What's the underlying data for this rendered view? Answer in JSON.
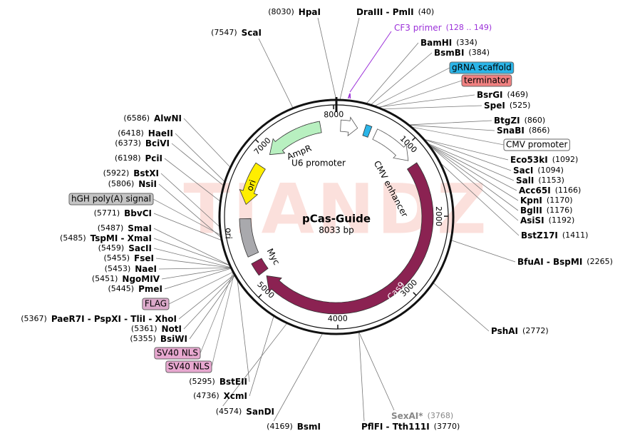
{
  "title": "pCas-Guide",
  "size_label": "8033 bp",
  "length": 8033,
  "watermark": "TIANDZ",
  "ring_ticks": [
    1000,
    2000,
    3000,
    4000,
    5000,
    7000,
    8000
  ],
  "features": [
    {
      "label": "U6 promoter",
      "start": 60,
      "end": 300,
      "color": "#ffffff",
      "arrow": true
    },
    {
      "label": null,
      "start": 400,
      "end": 480,
      "color": "#2bb5e8",
      "arrow": false
    },
    {
      "label": "CMV enhancer",
      "start": 560,
      "end": 1160,
      "color": "#ffffff",
      "arrow": true
    },
    {
      "label": "Cas9",
      "start": 1250,
      "end": 5130,
      "color": "#8b2252",
      "arrow": true
    },
    {
      "label": "Myc",
      "start": 5200,
      "end": 5380,
      "color": "#8b2252",
      "arrow": false
    },
    {
      "label": "ori",
      "start": 5480,
      "end": 6000,
      "color": "#a9a9ad",
      "arrow": false
    },
    {
      "label": "ori",
      "start": 6780,
      "end": 6200,
      "color": "#ffee00",
      "arrow": true
    },
    {
      "label": "AmpR",
      "start": 7810,
      "end": 6985,
      "color": "#b8f0c0",
      "arrow": true
    }
  ],
  "callouts": [
    {
      "text": "gRNA scaffold",
      "position": 430,
      "color": "#2bb5e8"
    },
    {
      "text": "terminator",
      "position": 480,
      "color": "#f08080"
    },
    {
      "text": "CMV promoter",
      "position": 900,
      "color": "#ffffff"
    },
    {
      "text": "hGH poly(A) signal",
      "position": 5830,
      "color": "#c4c4c4"
    },
    {
      "text": "FLAG",
      "position": 5400,
      "color": "#dcaacb"
    },
    {
      "text": "SV40 NLS",
      "position": 5390,
      "color": "#e8a8d0"
    },
    {
      "text": "SV40 NLS",
      "position": 5370,
      "color": "#e8a8d0"
    }
  ],
  "primer": {
    "name": "CF3 primer",
    "range": "(128 .. 149)",
    "start": 128,
    "end": 149,
    "color": "#9b30d9"
  },
  "sites": [
    {
      "name": "HpaI",
      "position": 8030,
      "position_label": "(8030)"
    },
    {
      "name": "DraIII - PmlI",
      "position": 40,
      "position_label": "(40)"
    },
    {
      "name": "ScaI",
      "position": 7547,
      "position_label": "(7547)"
    },
    {
      "name": "BamHI",
      "position": 334,
      "position_label": "(334)"
    },
    {
      "name": "BsmBI",
      "position": 384,
      "position_label": "(384)"
    },
    {
      "name": "BsrGI",
      "position": 469,
      "position_label": "(469)"
    },
    {
      "name": "SpeI",
      "position": 525,
      "position_label": "(525)"
    },
    {
      "name": "BtgZI",
      "position": 860,
      "position_label": "(860)"
    },
    {
      "name": "SnaBI",
      "position": 866,
      "position_label": "(866)"
    },
    {
      "name": "Eco53kI",
      "position": 1092,
      "position_label": "(1092)"
    },
    {
      "name": "SacI",
      "position": 1094,
      "position_label": "(1094)"
    },
    {
      "name": "SalI",
      "position": 1153,
      "position_label": "(1153)"
    },
    {
      "name": "Acc65I",
      "position": 1166,
      "position_label": "(1166)"
    },
    {
      "name": "KpnI",
      "position": 1170,
      "position_label": "(1170)"
    },
    {
      "name": "BglII",
      "position": 1176,
      "position_label": "(1176)"
    },
    {
      "name": "AsiSI",
      "position": 1192,
      "position_label": "(1192)"
    },
    {
      "name": "BstZ17I",
      "position": 1411,
      "position_label": "(1411)"
    },
    {
      "name": "BfuAI - BspMI",
      "position": 2265,
      "position_label": "(2265)"
    },
    {
      "name": "PshAI",
      "position": 2772,
      "position_label": "(2772)"
    },
    {
      "name": "SexAI*",
      "position": 3768,
      "position_label": "(3768)",
      "color": "#888888"
    },
    {
      "name": "PflFI - Tth111I",
      "position": 3770,
      "position_label": "(3770)"
    },
    {
      "name": "BsmI",
      "position": 4169,
      "position_label": "(4169)"
    },
    {
      "name": "SanDI",
      "position": 4574,
      "position_label": "(4574)"
    },
    {
      "name": "XcmI",
      "position": 4736,
      "position_label": "(4736)"
    },
    {
      "name": "BstEII",
      "position": 5295,
      "position_label": "(5295)"
    },
    {
      "name": "BsiWI",
      "position": 5355,
      "position_label": "(5355)"
    },
    {
      "name": "NotI",
      "position": 5361,
      "position_label": "(5361)"
    },
    {
      "name": "PaeR7I - PspXI - TliI - XhoI",
      "position": 5367,
      "position_label": "(5367)"
    },
    {
      "name": "PmeI",
      "position": 5445,
      "position_label": "(5445)"
    },
    {
      "name": "NgoMIV",
      "position": 5451,
      "position_label": "(5451)"
    },
    {
      "name": "NaeI",
      "position": 5453,
      "position_label": "(5453)"
    },
    {
      "name": "FseI",
      "position": 5455,
      "position_label": "(5455)"
    },
    {
      "name": "SacII",
      "position": 5459,
      "position_label": "(5459)"
    },
    {
      "name": "TspMI - XmaI",
      "position": 5485,
      "position_label": "(5485)"
    },
    {
      "name": "SmaI",
      "position": 5487,
      "position_label": "(5487)"
    },
    {
      "name": "BbvCI",
      "position": 5771,
      "position_label": "(5771)"
    },
    {
      "name": "NsiI",
      "position": 5806,
      "position_label": "(5806)"
    },
    {
      "name": "BstXI",
      "position": 5922,
      "position_label": "(5922)"
    },
    {
      "name": "PciI",
      "position": 6198,
      "position_label": "(6198)"
    },
    {
      "name": "BciVI",
      "position": 6373,
      "position_label": "(6373)"
    },
    {
      "name": "HaeII",
      "position": 6418,
      "position_label": "(6418)"
    },
    {
      "name": "AlwNI",
      "position": 6586,
      "position_label": "(6586)"
    }
  ]
}
